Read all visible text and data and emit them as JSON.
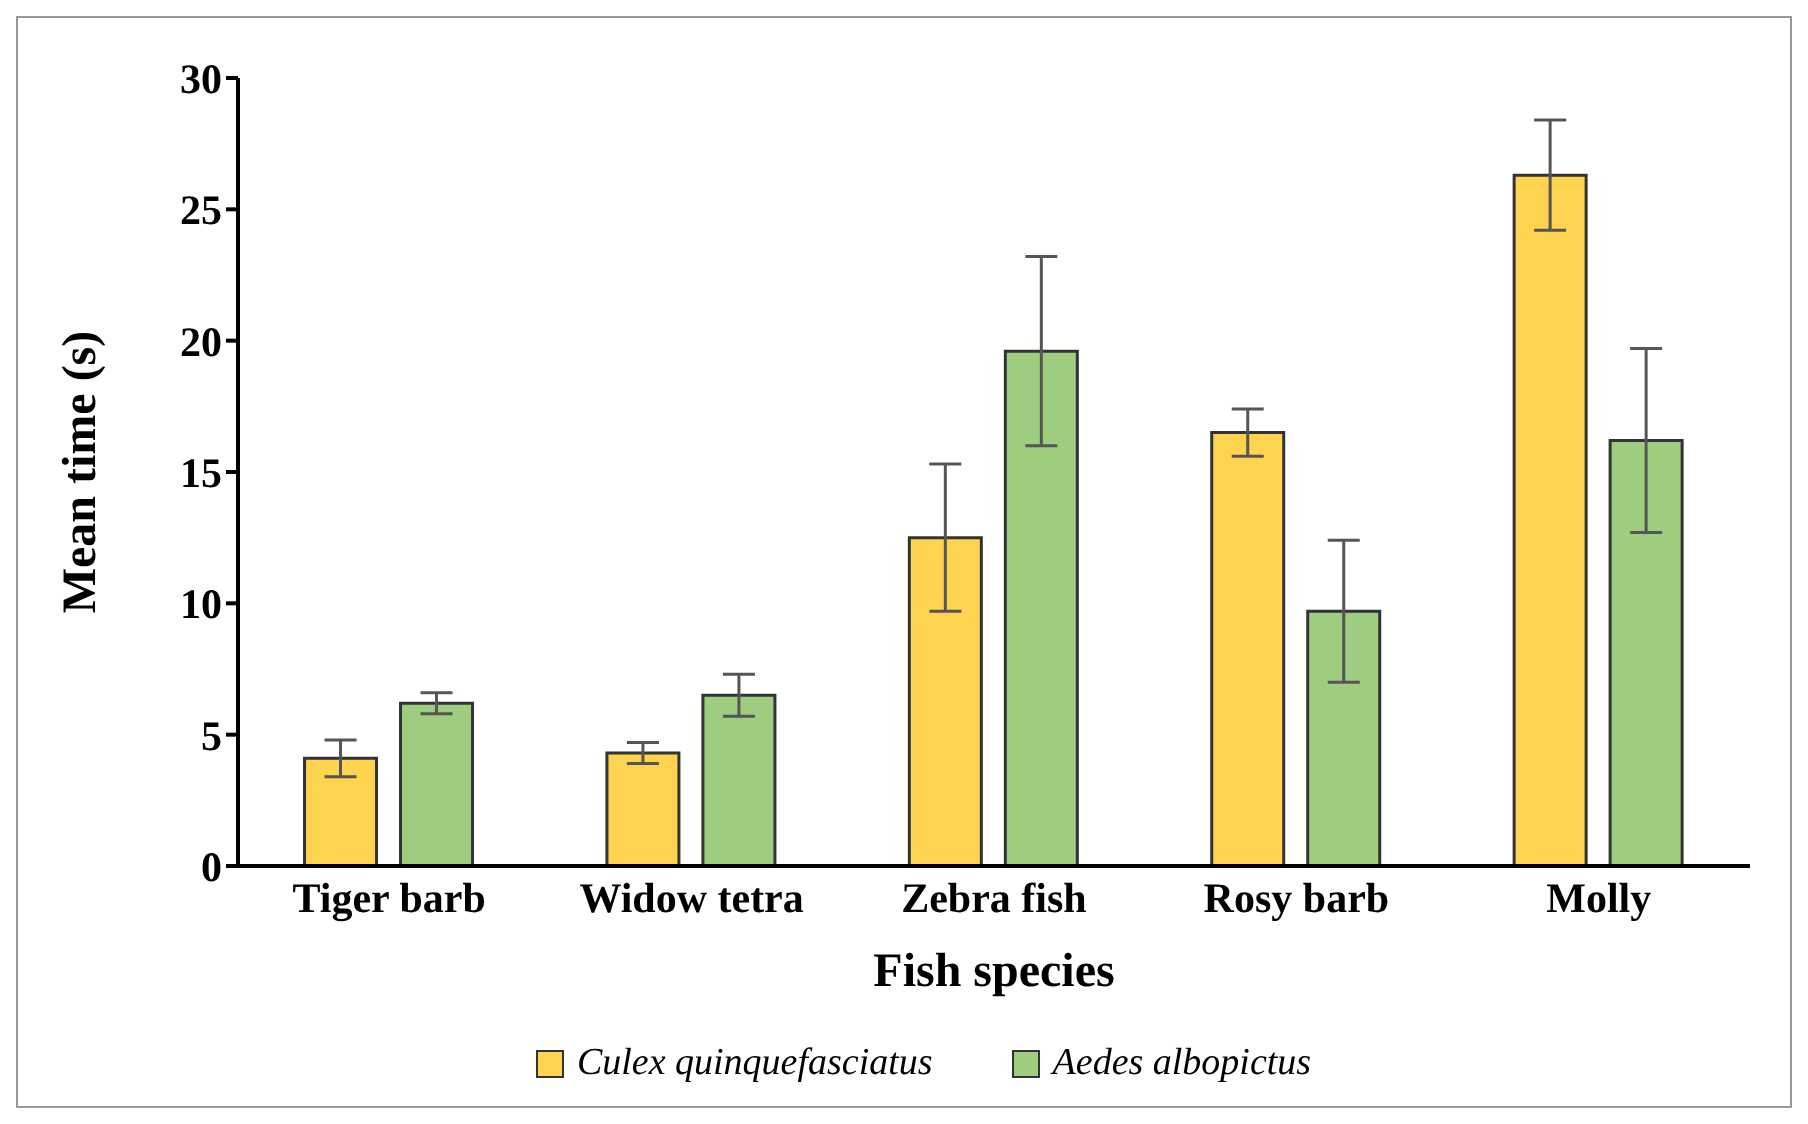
{
  "chart_data": {
    "type": "bar",
    "xlabel": "Fish species",
    "ylabel": "Mean time  (s)",
    "categories": [
      "Tiger barb",
      "Widow tetra",
      "Zebra fish",
      "Rosy barb",
      "Molly"
    ],
    "series": [
      {
        "name": "Culex quinquefasciatus",
        "color": "#fdd34f",
        "values": [
          4.1,
          4.3,
          12.5,
          16.5,
          26.3
        ],
        "errors": [
          0.7,
          0.4,
          2.8,
          0.9,
          2.1
        ]
      },
      {
        "name": "Aedes albopictus",
        "color": "#9fcd80",
        "values": [
          6.2,
          6.5,
          19.6,
          9.7,
          16.2
        ],
        "errors": [
          0.4,
          0.8,
          3.6,
          2.7,
          3.5
        ]
      }
    ],
    "ylim": [
      0,
      30
    ],
    "yticks": [
      0,
      5,
      10,
      15,
      20,
      25,
      30
    ],
    "grid": false,
    "legend": "bottom"
  }
}
